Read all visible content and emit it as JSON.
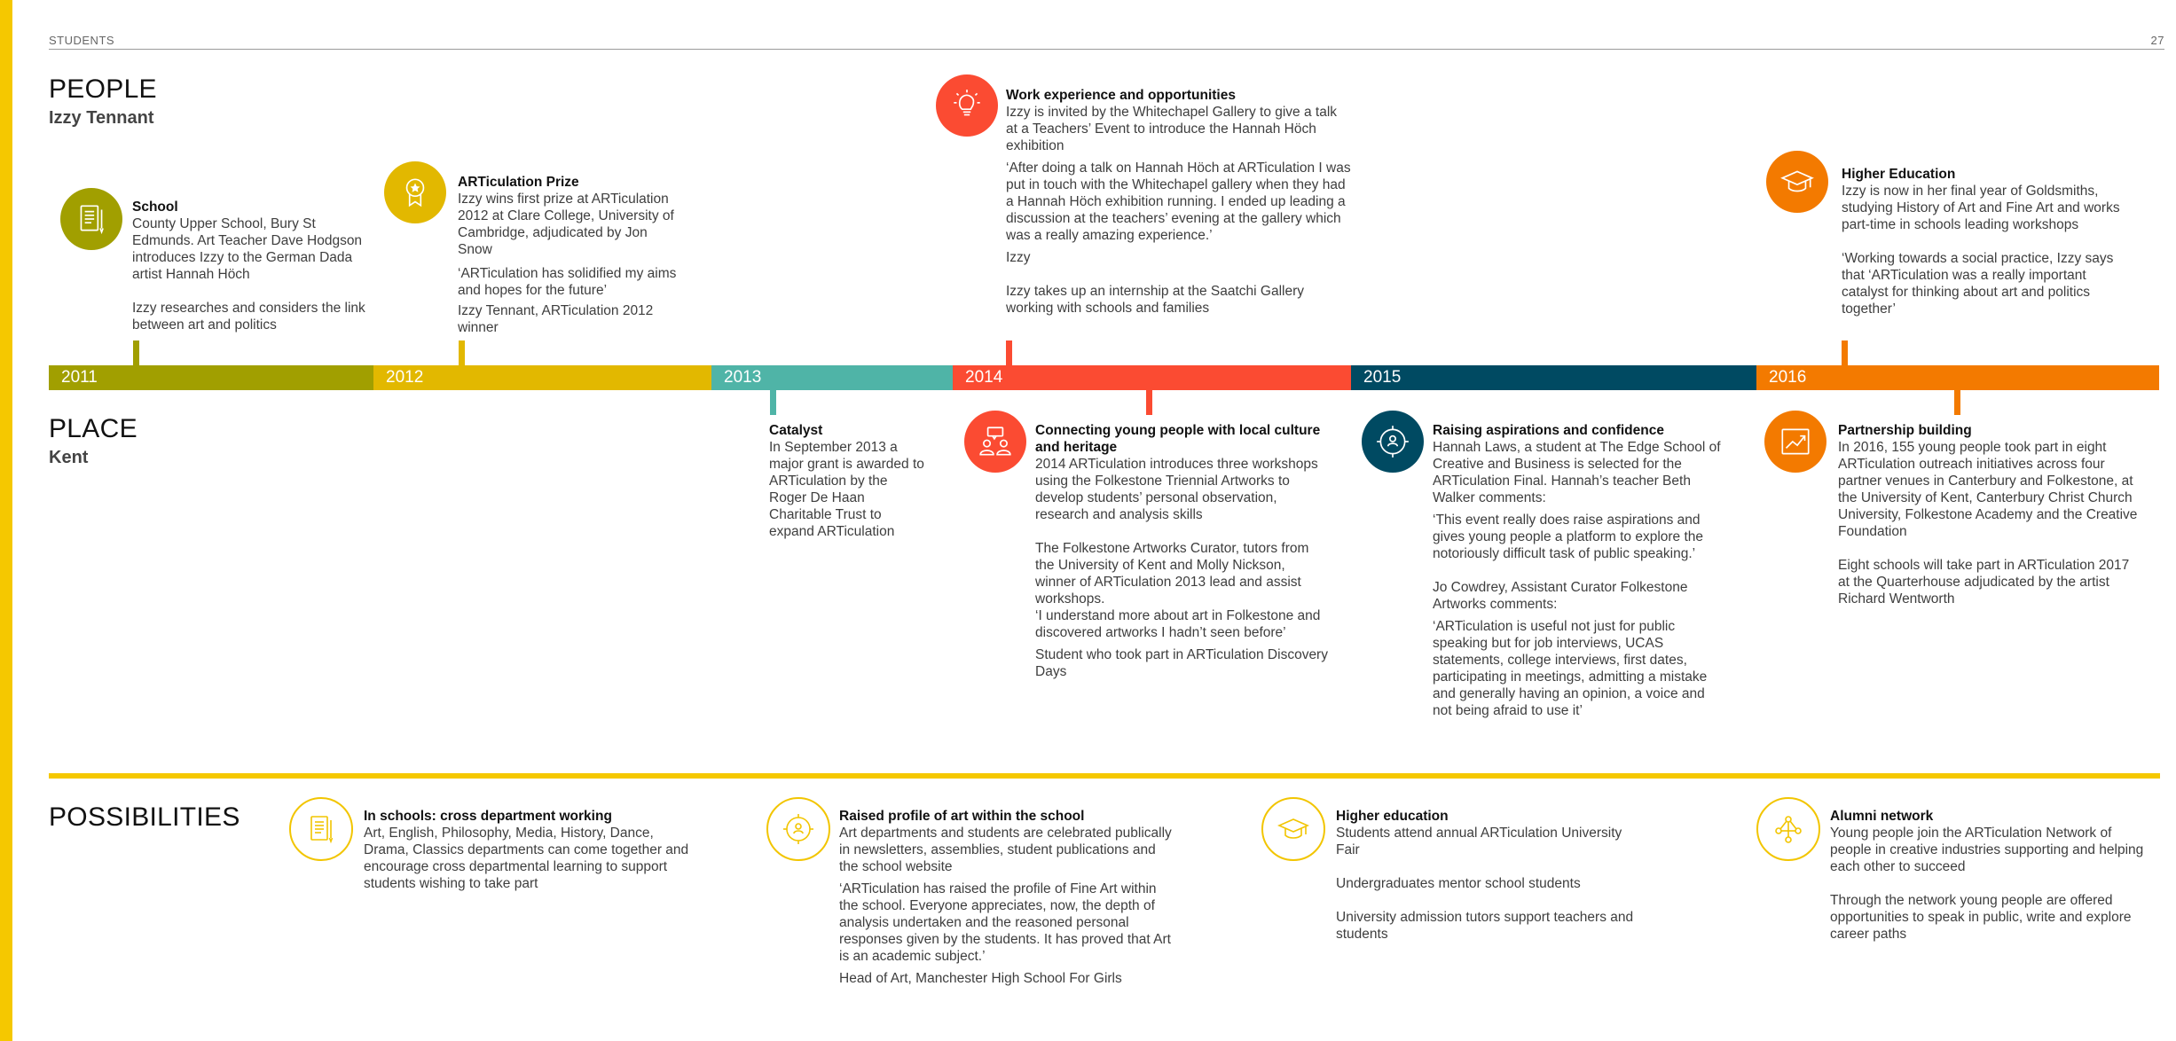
{
  "header": {
    "section": "STUDENTS",
    "page_number": "27"
  },
  "people": {
    "title": "PEOPLE",
    "name": "Izzy Tennant",
    "items": [
      {
        "title": "School",
        "paras": [
          "County Upper School, Bury St Edmunds. Art Teacher Dave Hodgson introduces Izzy to the German Dada artist Hannah Höch",
          "Izzy researches and considers the link between art and politics"
        ]
      },
      {
        "title": "ARTiculation Prize",
        "paras": [
          "Izzy wins first prize at ARTiculation 2012 at Clare College, University of Cambridge, adjudicated  by Jon Snow",
          "‘ARTiculation has solidified my aims and hopes for the future’",
          "Izzy Tennant, ARTiculation 2012 winner"
        ]
      },
      {
        "title": "Work experience and opportunities",
        "paras": [
          "Izzy is invited by the Whitechapel Gallery to give a talk at a Teachers’ Event to introduce the Hannah Höch exhibition",
          "‘After doing a talk on Hannah Höch at ARTiculation I was put in touch with the Whitechapel gallery when they had a Hannah Höch exhibition running. I ended up leading a discussion at the teachers’ evening at the gallery which was a really amazing experience.’",
          "Izzy",
          "Izzy takes up an internship at the Saatchi Gallery working with schools and families"
        ]
      },
      {
        "title": "Higher Education",
        "paras": [
          "Izzy is now in her final year of Goldsmiths, studying History of Art and Fine Art and works part-time in schools leading workshops",
          "‘Working towards a social practice, Izzy says that ‘ARTiculation was a really important catalyst for thinking about art and politics together’"
        ]
      }
    ]
  },
  "timeline": {
    "years": [
      {
        "label": "2011",
        "color": "#a19f00"
      },
      {
        "label": "2012",
        "color": "#e2b800"
      },
      {
        "label": "2013",
        "color": "#4fb4a7"
      },
      {
        "label": "2014",
        "color": "#fb4b32"
      },
      {
        "label": "2015",
        "color": "#004a62"
      },
      {
        "label": "2016",
        "color": "#f37a00"
      }
    ]
  },
  "place": {
    "title": "PLACE",
    "name": "Kent",
    "items": [
      {
        "title": "Catalyst",
        "paras": [
          "In September 2013 a major grant is awarded to ARTiculation by the Roger De Haan Charitable Trust to expand ARTiculation"
        ]
      },
      {
        "title": "Connecting young people with local culture and heritage",
        "paras": [
          "2014 ARTiculation introduces three workshops using the Folkestone Triennial Artworks to develop students’ personal observation, research and analysis skills",
          "The Folkestone Artworks Curator, tutors from the University of Kent and Molly Nickson, winner of ARTiculation 2013 lead and assist workshops.",
          "‘I understand more about art in Folkestone and discovered artworks I hadn’t seen before’",
          "Student who took part in ARTiculation Discovery Days"
        ]
      },
      {
        "title": "Raising aspirations and confidence",
        "paras": [
          "Hannah Laws, a student at The Edge School of Creative and Business is selected for the ARTiculation Final. Hannah’s teacher Beth Walker comments:",
          "‘This event really does raise aspirations and gives young people a platform to explore the notoriously difficult task of public speaking.’",
          "Jo Cowdrey, Assistant Curator Folkestone Artworks comments:",
          "‘ARTiculation is useful not just for public speaking but for job interviews, UCAS statements, college interviews, first dates, participating in meetings, admitting a mistake and generally having an opinion, a voice and not being afraid to use it’"
        ]
      },
      {
        "title": "Partnership building",
        "paras": [
          "In 2016, 155 young people took part in eight ARTiculation outreach initiatives across four partner venues in Canterbury and Folkestone, at the University of Kent, Canterbury Christ Church University, Folkestone Academy and the Creative Foundation",
          "Eight schools will take part in ARTiculation 2017 at the Quarterhouse adjudicated by the artist Richard Wentworth"
        ]
      }
    ]
  },
  "possibilities": {
    "title": "POSSIBILITIES",
    "items": [
      {
        "title": "In schools: cross department working",
        "paras": [
          "Art, English, Philosophy, Media, History, Dance, Drama, Classics departments can come together and encourage cross departmental learning to support students wishing to take part"
        ]
      },
      {
        "title": "Raised profile of art within the school",
        "paras": [
          "Art departments and students are celebrated publically in newsletters, assemblies, student publications and the school website",
          "‘ARTiculation has raised the profile of Fine Art within the school. Everyone appreciates, now, the depth of analysis undertaken and the reasoned personal responses given by the students. It has proved that Art is an academic subject.’",
          "Head of Art, Manchester High School For Girls"
        ]
      },
      {
        "title": "Higher education",
        "paras": [
          "Students attend annual ARTiculation University Fair",
          "Undergraduates mentor school students",
          "University admission tutors support teachers and students"
        ]
      },
      {
        "title": "Alumni network",
        "paras": [
          "Young people join the ARTiculation Network of people in creative industries supporting and helping each other to succeed",
          "Through the network young people are offered opportunities to speak in public, write and explore career paths"
        ]
      }
    ]
  },
  "icons": {
    "school": "notebook-pen-icon",
    "prize": "award-medal-icon",
    "work": "lightbulb-icon",
    "higher_ed": "graduation-cap-icon",
    "catalyst": "none",
    "connecting": "people-speech-icon",
    "raising": "person-network-icon",
    "partnership": "growth-chart-icon",
    "poss_schools": "notebook-pen-icon",
    "poss_profile": "person-network-icon",
    "poss_higher_ed": "graduation-cap-icon",
    "poss_alumni": "people-network-icon"
  },
  "colors": {
    "accent_yellow": "#f5c800"
  }
}
